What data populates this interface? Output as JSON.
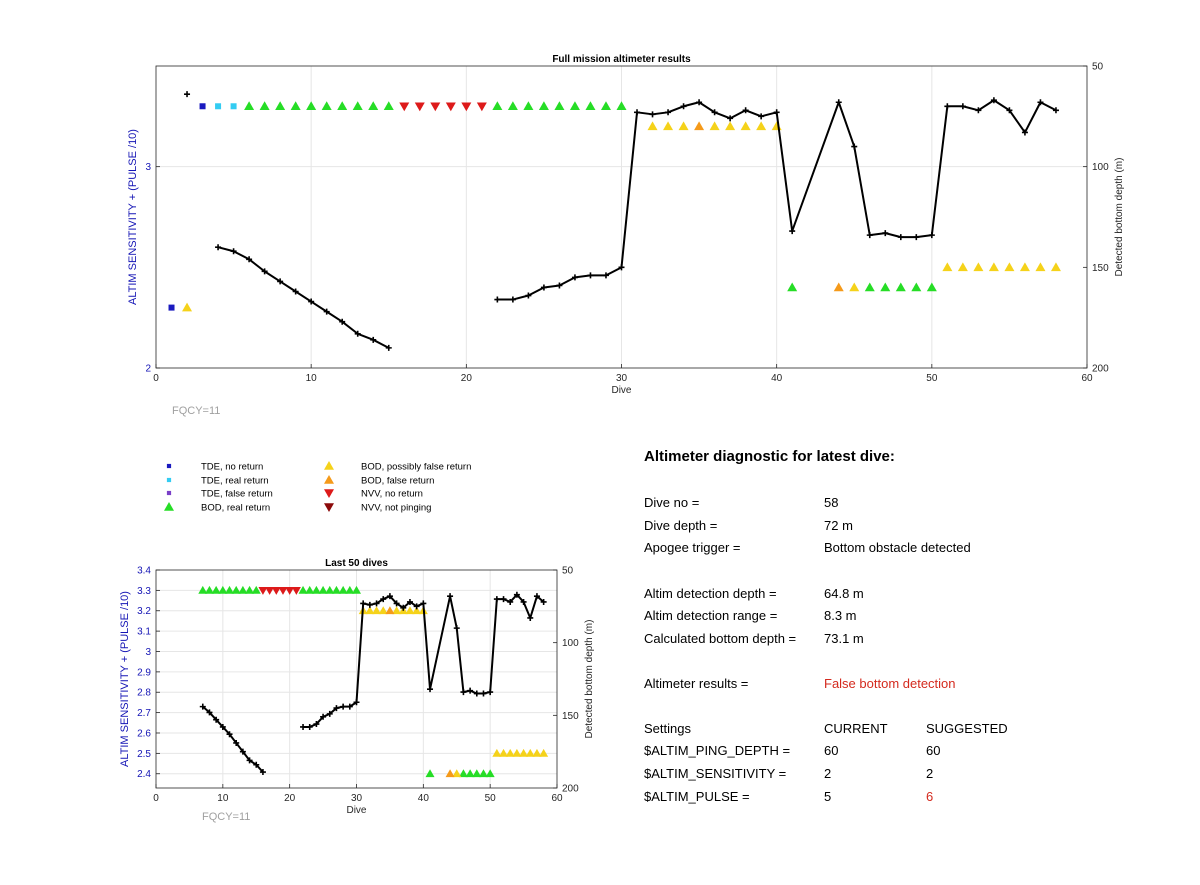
{
  "colors": {
    "tde_no": "#1a1abf",
    "tde_real": "#33ccf2",
    "tde_false": "#7a3fc8",
    "bod_real": "#26dd26",
    "bod_possibly": "#f5d21a",
    "bod_false": "#f59a1a",
    "nvv_no": "#dd1a1a",
    "nvv_notping": "#8c0a0a",
    "axis_left": "#1515b5",
    "fqcy": "#a0a0a0",
    "warn": "#d42a1e"
  },
  "legend": [
    {
      "key": "tde_no",
      "label": "TDE, no return",
      "marker": "square"
    },
    {
      "key": "tde_real",
      "label": "TDE, real return",
      "marker": "square"
    },
    {
      "key": "tde_false",
      "label": "TDE, false return",
      "marker": "square"
    },
    {
      "key": "bod_real",
      "label": "BOD, real return",
      "marker": "up"
    },
    {
      "key": "bod_possibly",
      "label": "BOD, possibly false return",
      "marker": "up"
    },
    {
      "key": "bod_false",
      "label": "BOD, false return",
      "marker": "up"
    },
    {
      "key": "nvv_no",
      "label": "NVV, no return",
      "marker": "down"
    },
    {
      "key": "nvv_notping",
      "label": "NVV, not pinging",
      "marker": "down"
    }
  ],
  "chart_data": [
    {
      "type": "scatter",
      "title": "Full mission altimeter results",
      "xlabel": "Dive",
      "ylabel": "ALTIM SENSITIVITY + (PULSE /10)",
      "y2label": "Detected bottom depth (m)",
      "xlim": [
        0,
        60
      ],
      "ylim": [
        2,
        3.5
      ],
      "y2lim": [
        200,
        50
      ],
      "y2_reversed": true,
      "xticks": [
        0,
        10,
        20,
        30,
        40,
        50,
        60
      ],
      "yticks": [
        2,
        3
      ],
      "y2ticks": [
        50,
        100,
        150,
        200
      ],
      "grid": true,
      "annotation": "FQCY=11",
      "series": [
        {
          "name": "TDE, no return",
          "points": [
            [
              1,
              2.3
            ],
            [
              3,
              3.3
            ]
          ]
        },
        {
          "name": "TDE, real return",
          "points": [
            [
              4,
              3.3
            ],
            [
              5,
              3.3
            ]
          ]
        },
        {
          "name": "BOD, possibly false return",
          "points": [
            [
              2,
              2.3
            ],
            [
              32,
              3.2
            ],
            [
              33,
              3.2
            ],
            [
              34,
              3.2
            ],
            [
              36,
              3.2
            ],
            [
              37,
              3.2
            ],
            [
              38,
              3.2
            ],
            [
              39,
              3.2
            ],
            [
              40,
              3.2
            ],
            [
              45,
              2.4
            ],
            [
              51,
              2.5
            ],
            [
              52,
              2.5
            ],
            [
              53,
              2.5
            ],
            [
              54,
              2.5
            ],
            [
              55,
              2.5
            ],
            [
              56,
              2.5
            ],
            [
              57,
              2.5
            ],
            [
              58,
              2.5
            ]
          ]
        },
        {
          "name": "BOD, false return",
          "points": [
            [
              35,
              3.2
            ],
            [
              44,
              2.4
            ]
          ]
        },
        {
          "name": "BOD, real return",
          "points": [
            [
              6,
              3.3
            ],
            [
              7,
              3.3
            ],
            [
              8,
              3.3
            ],
            [
              9,
              3.3
            ],
            [
              10,
              3.3
            ],
            [
              11,
              3.3
            ],
            [
              12,
              3.3
            ],
            [
              13,
              3.3
            ],
            [
              14,
              3.3
            ],
            [
              15,
              3.3
            ],
            [
              22,
              3.3
            ],
            [
              23,
              3.3
            ],
            [
              24,
              3.3
            ],
            [
              25,
              3.3
            ],
            [
              26,
              3.3
            ],
            [
              27,
              3.3
            ],
            [
              28,
              3.3
            ],
            [
              29,
              3.3
            ],
            [
              30,
              3.3
            ],
            [
              41,
              2.4
            ],
            [
              46,
              2.4
            ],
            [
              47,
              2.4
            ],
            [
              48,
              2.4
            ],
            [
              49,
              2.4
            ],
            [
              50,
              2.4
            ]
          ]
        },
        {
          "name": "NVV, no return",
          "points": [
            [
              16,
              3.3
            ],
            [
              17,
              3.3
            ],
            [
              18,
              3.3
            ],
            [
              19,
              3.3
            ],
            [
              20,
              3.3
            ],
            [
              21,
              3.3
            ]
          ]
        }
      ],
      "depth_series": [
        [
          [
            2,
            64
          ]
        ],
        [
          [
            4,
            140
          ],
          [
            5,
            142
          ],
          [
            6,
            146
          ],
          [
            7,
            152
          ],
          [
            8,
            157
          ],
          [
            9,
            162
          ],
          [
            10,
            167
          ],
          [
            11,
            172
          ],
          [
            12,
            177
          ],
          [
            13,
            183
          ],
          [
            14,
            186
          ],
          [
            15,
            190
          ]
        ],
        [
          [
            22,
            166
          ],
          [
            23,
            166
          ],
          [
            24,
            164
          ],
          [
            25,
            160
          ],
          [
            26,
            159
          ],
          [
            27,
            155
          ],
          [
            28,
            154
          ],
          [
            29,
            154
          ],
          [
            30,
            150
          ],
          [
            31,
            73
          ],
          [
            32,
            74
          ],
          [
            33,
            73
          ],
          [
            34,
            70
          ],
          [
            35,
            68
          ],
          [
            36,
            73
          ],
          [
            37,
            76
          ],
          [
            38,
            72
          ],
          [
            39,
            75
          ],
          [
            40,
            73
          ],
          [
            41,
            132
          ],
          [
            44,
            68
          ],
          [
            45,
            90
          ],
          [
            46,
            134
          ],
          [
            47,
            133
          ],
          [
            48,
            135
          ],
          [
            49,
            135
          ],
          [
            50,
            134
          ],
          [
            51,
            70
          ],
          [
            52,
            70
          ],
          [
            53,
            72
          ],
          [
            54,
            67
          ],
          [
            55,
            72
          ],
          [
            56,
            83
          ],
          [
            57,
            68
          ],
          [
            58,
            72
          ]
        ]
      ]
    },
    {
      "type": "scatter",
      "title": "Last 50 dives",
      "xlabel": "Dive",
      "ylabel": "ALTIM SENSITIVITY + (PULSE /10)",
      "y2label": "Detected bottom depth (m)",
      "xlim": [
        0,
        60
      ],
      "ylim": [
        2.33,
        3.4
      ],
      "y2lim": [
        200,
        50
      ],
      "y2_reversed": true,
      "xticks": [
        0,
        10,
        20,
        30,
        40,
        50,
        60
      ],
      "yticks": [
        2.4,
        2.5,
        2.6,
        2.7,
        2.8,
        2.9,
        3,
        3.1,
        3.2,
        3.3,
        3.4
      ],
      "y2ticks": [
        50,
        100,
        150,
        200
      ],
      "grid": true,
      "annotation": "FQCY=11",
      "series": [
        {
          "name": "BOD, real return",
          "points": [
            [
              7,
              3.3
            ],
            [
              8,
              3.3
            ],
            [
              9,
              3.3
            ],
            [
              10,
              3.3
            ],
            [
              11,
              3.3
            ],
            [
              12,
              3.3
            ],
            [
              13,
              3.3
            ],
            [
              14,
              3.3
            ],
            [
              15,
              3.3
            ],
            [
              22,
              3.3
            ],
            [
              23,
              3.3
            ],
            [
              24,
              3.3
            ],
            [
              25,
              3.3
            ],
            [
              26,
              3.3
            ],
            [
              27,
              3.3
            ],
            [
              28,
              3.3
            ],
            [
              29,
              3.3
            ],
            [
              30,
              3.3
            ],
            [
              41,
              2.4
            ],
            [
              46,
              2.4
            ],
            [
              47,
              2.4
            ],
            [
              48,
              2.4
            ],
            [
              49,
              2.4
            ],
            [
              50,
              2.4
            ]
          ]
        },
        {
          "name": "NVV, no return",
          "points": [
            [
              16,
              3.3
            ],
            [
              17,
              3.3
            ],
            [
              18,
              3.3
            ],
            [
              19,
              3.3
            ],
            [
              20,
              3.3
            ],
            [
              21,
              3.3
            ]
          ]
        },
        {
          "name": "BOD, possibly false return",
          "points": [
            [
              31,
              3.2
            ],
            [
              32,
              3.2
            ],
            [
              33,
              3.2
            ],
            [
              34,
              3.2
            ],
            [
              36,
              3.2
            ],
            [
              37,
              3.2
            ],
            [
              38,
              3.2
            ],
            [
              39,
              3.2
            ],
            [
              40,
              3.2
            ],
            [
              45,
              2.4
            ],
            [
              51,
              2.5
            ],
            [
              52,
              2.5
            ],
            [
              53,
              2.5
            ],
            [
              54,
              2.5
            ],
            [
              55,
              2.5
            ],
            [
              56,
              2.5
            ],
            [
              57,
              2.5
            ],
            [
              58,
              2.5
            ]
          ]
        },
        {
          "name": "BOD, false return",
          "points": [
            [
              35,
              3.2
            ],
            [
              44,
              2.4
            ]
          ]
        }
      ],
      "depth_series": [
        [
          [
            7,
            144
          ],
          [
            8,
            148
          ],
          [
            9,
            153
          ],
          [
            10,
            158
          ],
          [
            11,
            163
          ],
          [
            12,
            169
          ],
          [
            13,
            175
          ],
          [
            14,
            181
          ],
          [
            15,
            184
          ],
          [
            16,
            189
          ]
        ],
        [
          [
            22,
            158
          ],
          [
            23,
            158
          ],
          [
            24,
            156
          ],
          [
            25,
            151
          ],
          [
            26,
            149
          ],
          [
            27,
            145
          ],
          [
            28,
            144
          ],
          [
            29,
            144
          ],
          [
            30,
            141
          ],
          [
            31,
            73
          ],
          [
            32,
            74
          ],
          [
            33,
            73
          ],
          [
            34,
            70
          ],
          [
            35,
            68
          ],
          [
            36,
            73
          ],
          [
            37,
            76
          ],
          [
            38,
            72
          ],
          [
            39,
            75
          ],
          [
            40,
            73
          ],
          [
            41,
            132
          ],
          [
            44,
            68
          ],
          [
            45,
            90
          ],
          [
            46,
            134
          ],
          [
            47,
            133
          ],
          [
            48,
            135
          ],
          [
            49,
            135
          ],
          [
            50,
            134
          ],
          [
            51,
            70
          ],
          [
            52,
            70
          ],
          [
            53,
            72
          ],
          [
            54,
            67
          ],
          [
            55,
            72
          ],
          [
            56,
            83
          ],
          [
            57,
            68
          ],
          [
            58,
            72
          ]
        ]
      ]
    }
  ],
  "diagnostic": {
    "title": "Altimeter diagnostic for latest dive:",
    "rows": [
      {
        "label": "Dive no =",
        "value": "58"
      },
      {
        "label": "Dive depth =",
        "value": "72 m"
      },
      {
        "label": "Apogee trigger =",
        "value": "Bottom obstacle detected"
      },
      {
        "label": "Altim detection depth =",
        "value": "64.8 m"
      },
      {
        "label": "Altim detection range =",
        "value": "8.3 m"
      },
      {
        "label": "Calculated bottom depth =",
        "value": "73.1 m"
      },
      {
        "label": "Altimeter results =",
        "value": "False bottom detection"
      }
    ],
    "settings_header": {
      "label": "Settings",
      "current": "CURRENT",
      "suggested": "SUGGESTED"
    },
    "settings": [
      {
        "label": "$ALTIM_PING_DEPTH =",
        "current": "60",
        "suggested": "60"
      },
      {
        "label": "$ALTIM_SENSITIVITY =",
        "current": "2",
        "suggested": "2"
      },
      {
        "label": "$ALTIM_PULSE =",
        "current": "5",
        "suggested": "6"
      }
    ]
  }
}
